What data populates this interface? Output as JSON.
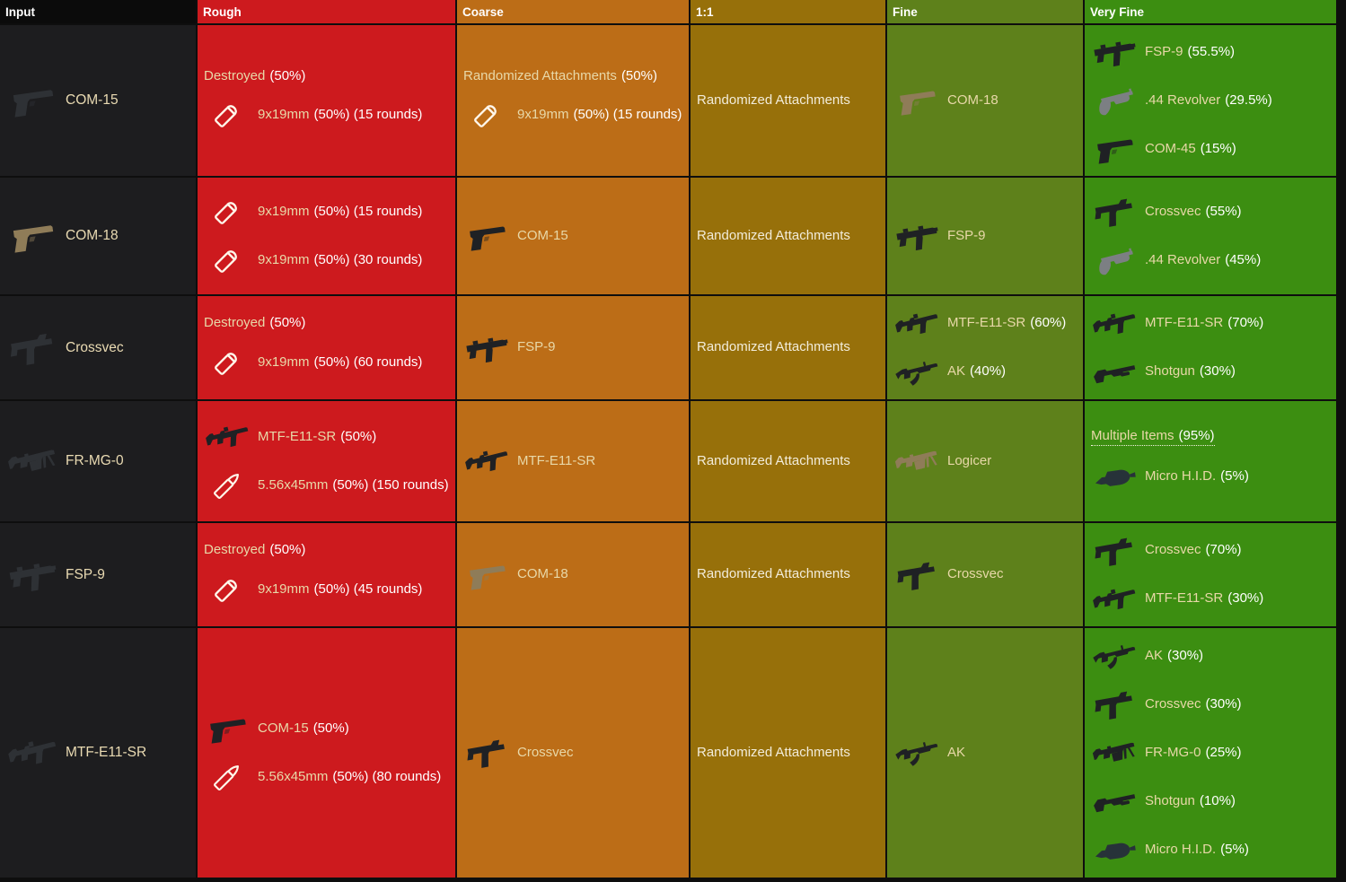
{
  "header": {
    "input": "Input",
    "rough": "Rough",
    "coarse": "Coarse",
    "one": "1:1",
    "fine": "Fine",
    "very": "Very Fine"
  },
  "colors": {
    "page_bg": "#0e0e0e",
    "input_header_bg": "#0b0b0b",
    "input_cell_bg": "#1d1d1f",
    "name_color": "#e8d8a8",
    "value_color": "#ffffff",
    "tiers": {
      "rough": "#cd1a1e",
      "coarse": "#bc6d17",
      "one": "#97700a",
      "fine": "#5e811b",
      "very": "#3c8e11"
    }
  },
  "rows": [
    {
      "input": {
        "icon": "pistol-dark",
        "name": "COM-15"
      },
      "rough": [
        {
          "name": "Destroyed",
          "suffix": "(50%)"
        },
        {
          "icon": "bullet-pistol",
          "name": "9x19mm",
          "suffix": "(50%) (15 rounds)"
        }
      ],
      "coarse": [
        {
          "name": "Randomized Attachments",
          "suffix": "(50%)"
        },
        {
          "icon": "bullet-pistol",
          "name": "9x19mm",
          "suffix": "(50%) (15 rounds)"
        }
      ],
      "one": [
        {
          "name": "Randomized Attachments",
          "suffix": ""
        }
      ],
      "fine": [
        {
          "icon": "pistol-tan",
          "name": "COM-18",
          "suffix": ""
        }
      ],
      "very": [
        {
          "icon": "smg-fsp9",
          "name": "FSP-9",
          "suffix": "(55.5%)"
        },
        {
          "icon": "revolver",
          "name": ".44 Revolver",
          "suffix": "(29.5%)"
        },
        {
          "icon": "pistol-dark",
          "name": "COM-45",
          "suffix": "(15%)"
        }
      ]
    },
    {
      "input": {
        "icon": "pistol-tan",
        "name": "COM-18"
      },
      "rough": [
        {
          "icon": "bullet-pistol",
          "name": "9x19mm",
          "suffix": "(50%) (15 rounds)"
        },
        {
          "icon": "bullet-pistol",
          "name": "9x19mm",
          "suffix": "(50%) (30 rounds)"
        }
      ],
      "coarse": [
        {
          "icon": "pistol-dark",
          "name": "COM-15",
          "suffix": ""
        }
      ],
      "one": [
        {
          "name": "Randomized Attachments",
          "suffix": ""
        }
      ],
      "fine": [
        {
          "icon": "smg-fsp9",
          "name": "FSP-9",
          "suffix": ""
        }
      ],
      "very": [
        {
          "icon": "smg-crossvec",
          "name": "Crossvec",
          "suffix": "(55%)"
        },
        {
          "icon": "revolver",
          "name": ".44 Revolver",
          "suffix": "(45%)"
        }
      ]
    },
    {
      "input": {
        "icon": "smg-crossvec",
        "name": "Crossvec"
      },
      "rough": [
        {
          "name": "Destroyed",
          "suffix": "(50%)"
        },
        {
          "icon": "bullet-pistol",
          "name": "9x19mm",
          "suffix": "(50%) (60 rounds)"
        }
      ],
      "coarse": [
        {
          "icon": "smg-fsp9",
          "name": "FSP-9",
          "suffix": ""
        }
      ],
      "one": [
        {
          "name": "Randomized Attachments",
          "suffix": ""
        }
      ],
      "fine": [
        {
          "icon": "rifle-e11",
          "name": "MTF-E11-SR",
          "suffix": "(60%)"
        },
        {
          "icon": "rifle-ak",
          "name": "AK",
          "suffix": "(40%)"
        }
      ],
      "very": [
        {
          "icon": "rifle-e11",
          "name": "MTF-E11-SR",
          "suffix": "(70%)"
        },
        {
          "icon": "shotgun",
          "name": "Shotgun",
          "suffix": "(30%)"
        }
      ]
    },
    {
      "input": {
        "icon": "lmg-dark",
        "name": "FR-MG-0"
      },
      "rough": [
        {
          "icon": "rifle-e11",
          "name": "MTF-E11-SR",
          "suffix": "(50%)"
        },
        {
          "icon": "bullet-rifle",
          "name": "5.56x45mm",
          "suffix": "(50%) (150 rounds)"
        }
      ],
      "coarse": [
        {
          "icon": "rifle-e11",
          "name": "MTF-E11-SR",
          "suffix": ""
        }
      ],
      "one": [
        {
          "name": "Randomized Attachments",
          "suffix": ""
        }
      ],
      "fine": [
        {
          "icon": "lmg-tan",
          "name": "Logicer",
          "suffix": ""
        }
      ],
      "very": [
        {
          "name": "Multiple Items",
          "suffix": "(95%)",
          "link": true
        },
        {
          "icon": "hid",
          "name": "Micro H.I.D.",
          "suffix": "(5%)"
        }
      ]
    },
    {
      "input": {
        "icon": "smg-fsp9",
        "name": "FSP-9"
      },
      "rough": [
        {
          "name": "Destroyed",
          "suffix": "(50%)"
        },
        {
          "icon": "bullet-pistol",
          "name": "9x19mm",
          "suffix": "(50%) (45 rounds)"
        }
      ],
      "coarse": [
        {
          "icon": "pistol-tan",
          "name": "COM-18",
          "suffix": ""
        }
      ],
      "one": [
        {
          "name": "Randomized Attachments",
          "suffix": ""
        }
      ],
      "fine": [
        {
          "icon": "smg-crossvec",
          "name": "Crossvec",
          "suffix": ""
        }
      ],
      "very": [
        {
          "icon": "smg-crossvec",
          "name": "Crossvec",
          "suffix": "(70%)"
        },
        {
          "icon": "rifle-e11",
          "name": "MTF-E11-SR",
          "suffix": "(30%)"
        }
      ]
    },
    {
      "input": {
        "icon": "rifle-e11",
        "name": "MTF-E11-SR"
      },
      "rough": [
        {
          "icon": "pistol-dark",
          "name": "COM-15",
          "suffix": "(50%)"
        },
        {
          "icon": "bullet-rifle",
          "name": "5.56x45mm",
          "suffix": "(50%) (80 rounds)"
        }
      ],
      "coarse": [
        {
          "icon": "smg-crossvec",
          "name": "Crossvec",
          "suffix": ""
        }
      ],
      "one": [
        {
          "name": "Randomized Attachments",
          "suffix": ""
        }
      ],
      "fine": [
        {
          "icon": "rifle-ak",
          "name": "AK",
          "suffix": ""
        }
      ],
      "very": [
        {
          "icon": "rifle-ak",
          "name": "AK",
          "suffix": "(30%)"
        },
        {
          "icon": "smg-crossvec",
          "name": "Crossvec",
          "suffix": "(30%)"
        },
        {
          "icon": "lmg-dark",
          "name": "FR-MG-0",
          "suffix": "(25%)"
        },
        {
          "icon": "shotgun",
          "name": "Shotgun",
          "suffix": "(10%)"
        },
        {
          "icon": "hid",
          "name": "Micro H.I.D.",
          "suffix": "(5%)"
        }
      ]
    }
  ]
}
